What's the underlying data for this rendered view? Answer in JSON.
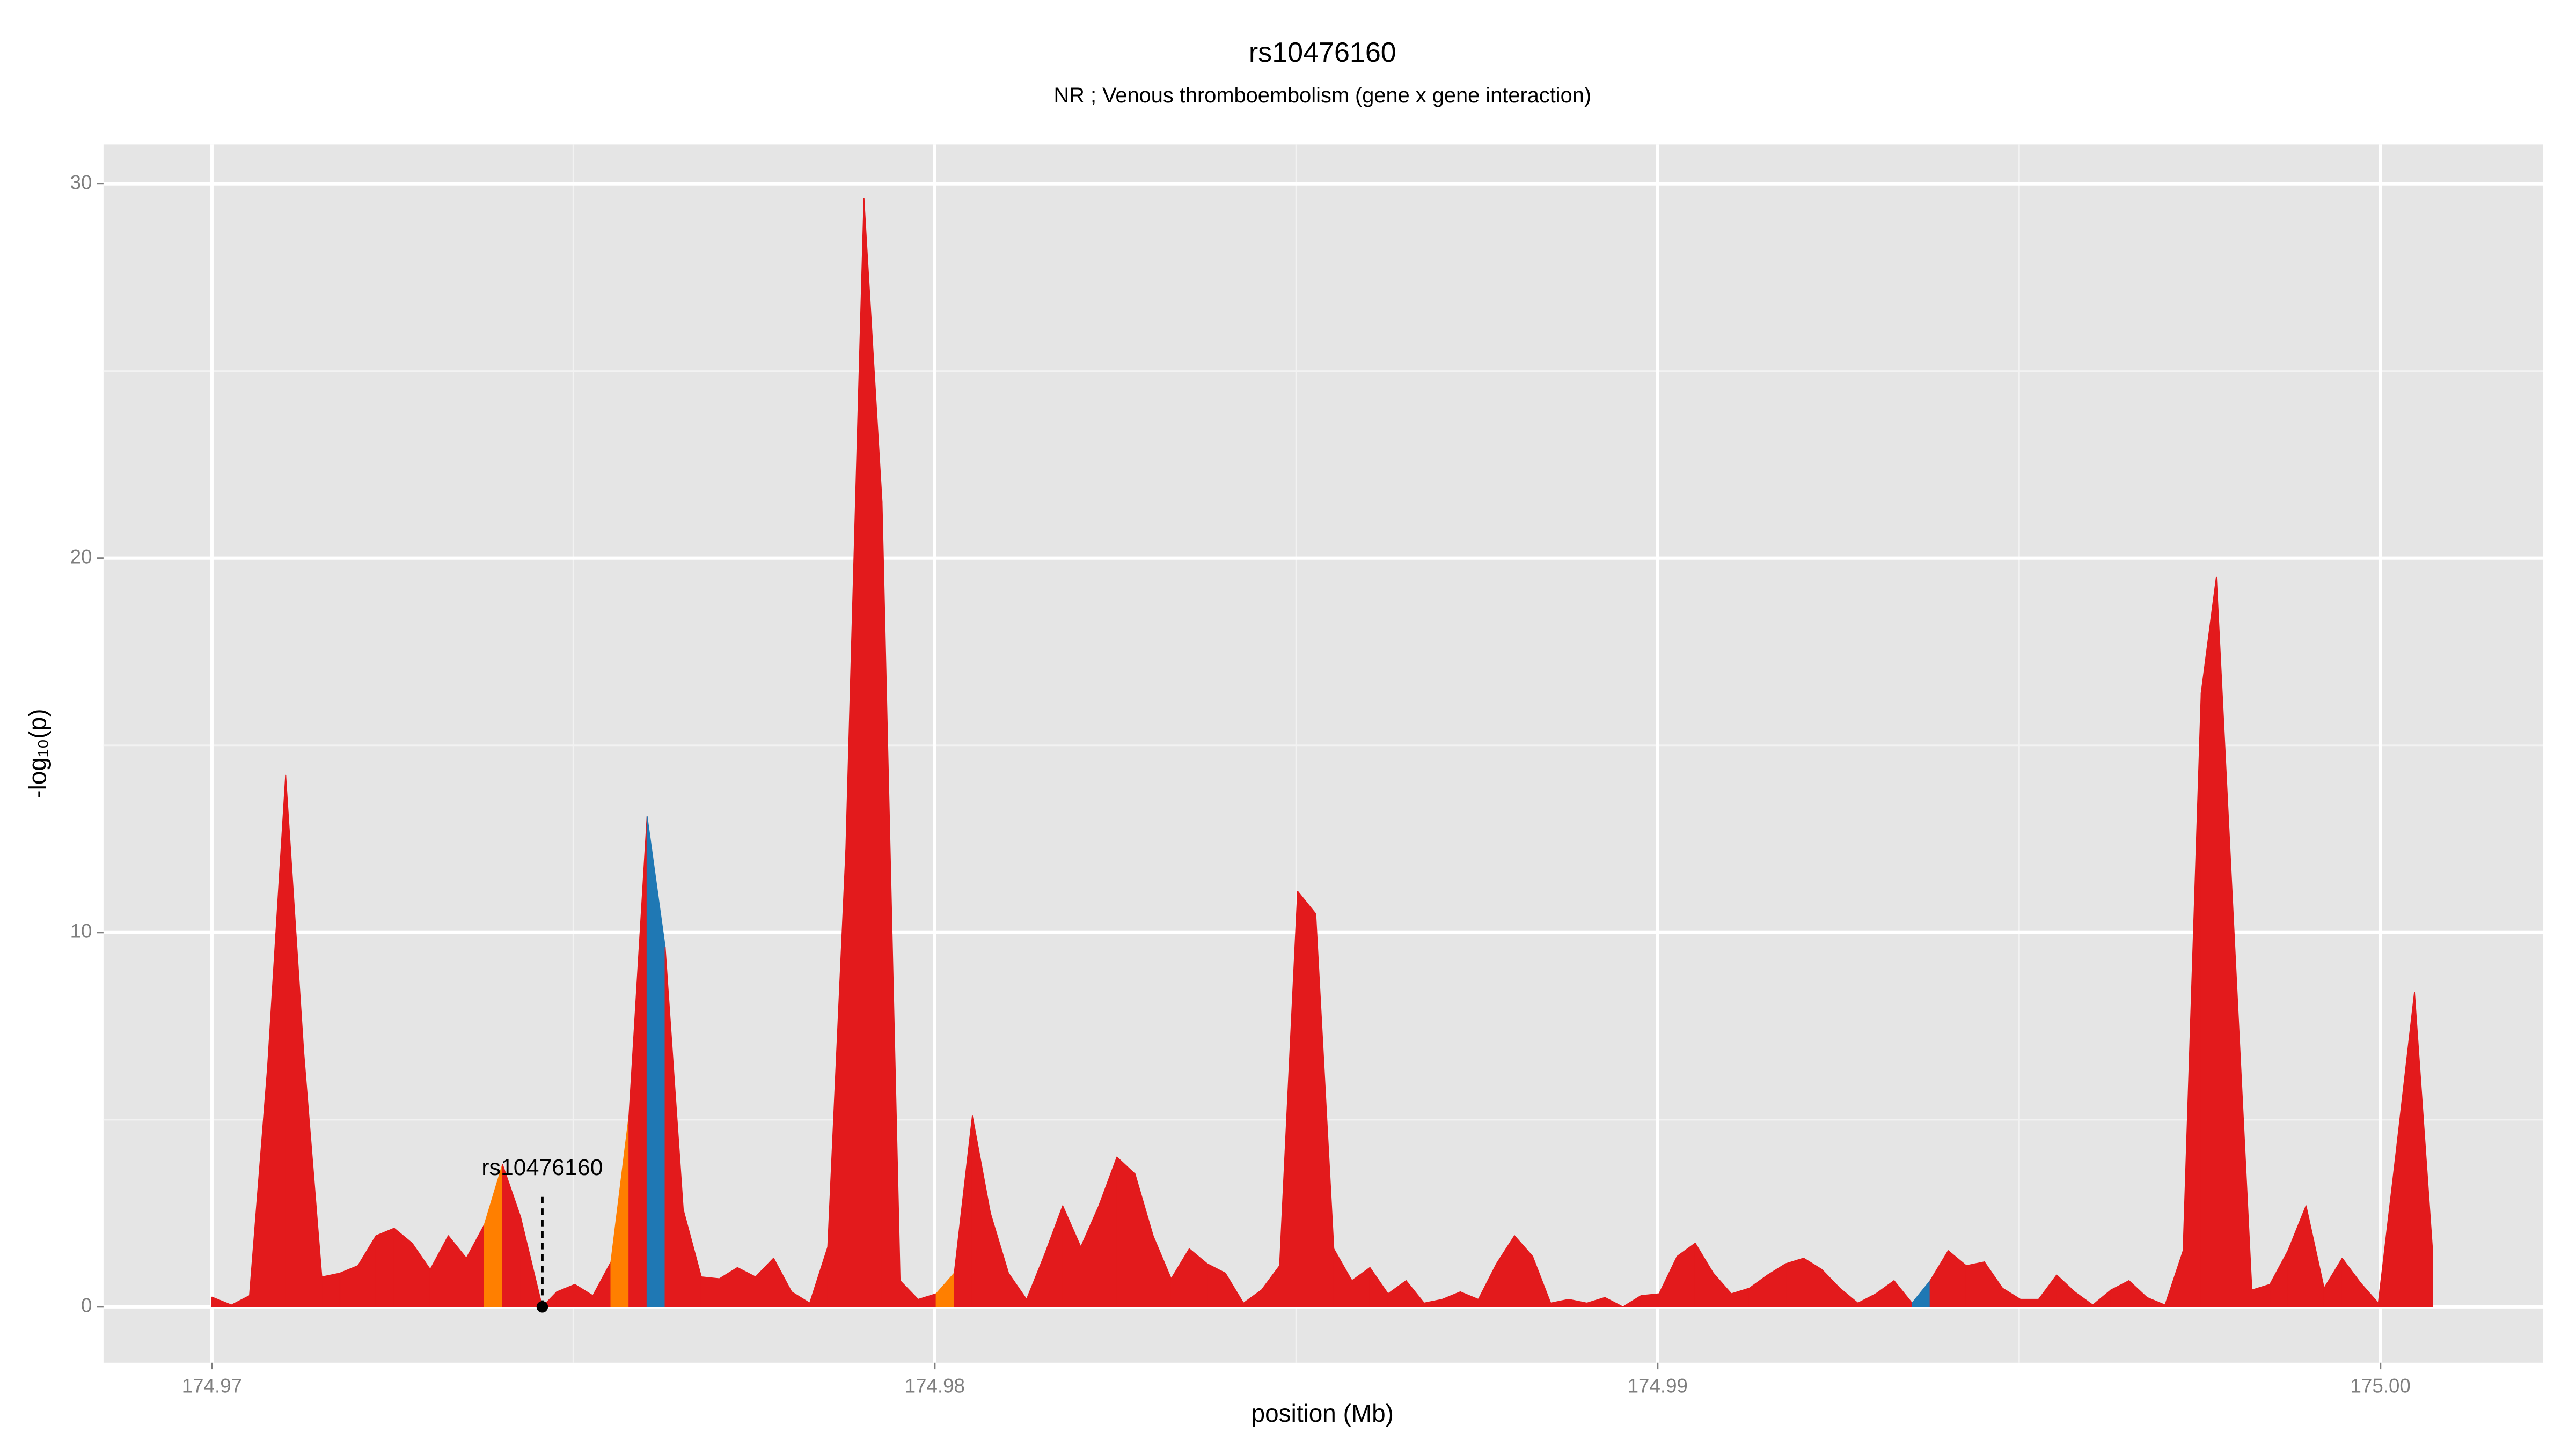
{
  "chart_data": {
    "type": "area",
    "title": "rs10476160",
    "subtitle": "NR ; Venous thromboembolism (gene x gene interaction)",
    "xlabel": "position (Mb)",
    "ylabel": "-log₁₀(p)",
    "x": [
      174.97,
      174.97027,
      174.97052,
      174.97077,
      174.97102,
      174.97127,
      174.97152,
      174.97177,
      174.97202,
      174.97227,
      174.97252,
      174.97277,
      174.97302,
      174.97327,
      174.97352,
      174.97377,
      174.97402,
      174.97427,
      174.97457,
      174.97477,
      174.97502,
      174.97527,
      174.97552,
      174.97577,
      174.97602,
      174.97627,
      174.97652,
      174.97677,
      174.97702,
      174.97727,
      174.97752,
      174.97777,
      174.97802,
      174.97827,
      174.97852,
      174.97877,
      174.97902,
      174.97927,
      174.97952,
      174.97977,
      174.98002,
      174.98027,
      174.98052,
      174.98077,
      174.98102,
      174.98127,
      174.98152,
      174.98177,
      174.98202,
      174.98227,
      174.98252,
      174.98277,
      174.98302,
      174.98327,
      174.98352,
      174.98377,
      174.98402,
      174.98427,
      174.98452,
      174.98477,
      174.98502,
      174.98527,
      174.98552,
      174.98577,
      174.98602,
      174.98627,
      174.98652,
      174.98677,
      174.98702,
      174.98727,
      174.98752,
      174.98777,
      174.98802,
      174.98827,
      174.98852,
      174.98877,
      174.98902,
      174.98927,
      174.98952,
      174.98977,
      174.99002,
      174.99027,
      174.99052,
      174.99077,
      174.99102,
      174.99127,
      174.99152,
      174.99177,
      174.99202,
      174.99227,
      174.99252,
      174.99277,
      174.99302,
      174.99327,
      174.99352,
      174.99377,
      174.99402,
      174.99427,
      174.99452,
      174.99477,
      174.99502,
      174.99527,
      174.99552,
      174.99577,
      174.99602,
      174.99627,
      174.99652,
      174.99677,
      174.99702,
      174.99727,
      174.99752,
      174.99773,
      174.99822,
      174.99847,
      174.99872,
      174.99897,
      174.99922,
      174.99947,
      174.99972,
      174.99997,
      175.00022,
      175.00047,
      175.00072
    ],
    "values": [
      0.26,
      0.05,
      0.3,
      6.4,
      14.2,
      6.8,
      0.8,
      0.9,
      1.1,
      1.9,
      2.1,
      1.7,
      1.0,
      1.9,
      1.3,
      2.2,
      3.8,
      2.4,
      0,
      0.4,
      0.6,
      0.3,
      1.2,
      5.1,
      13.1,
      9.6,
      2.6,
      0.8,
      0.75,
      1.05,
      0.8,
      1.3,
      0.4,
      0.1,
      1.6,
      12.2,
      29.6,
      21.5,
      0.7,
      0.2,
      0.35,
      0.9,
      5.1,
      2.5,
      0.9,
      0.2,
      1.4,
      2.7,
      1.6,
      2.7,
      4.0,
      3.55,
      1.9,
      0.75,
      1.55,
      1.15,
      0.9,
      0.1,
      0.45,
      1.1,
      11.1,
      10.5,
      1.55,
      0.7,
      1.05,
      0.35,
      0.7,
      0.1,
      0.2,
      0.4,
      0.2,
      1.15,
      1.9,
      1.35,
      0.1,
      0.2,
      0.1,
      0.25,
      0,
      0.3,
      0.35,
      1.35,
      1.7,
      0.9,
      0.35,
      0.5,
      0.85,
      1.15,
      1.3,
      1.0,
      0.5,
      0.1,
      0.35,
      0.7,
      0.1,
      0.7,
      1.5,
      1.1,
      1.2,
      0.5,
      0.2,
      0.2,
      0.85,
      0.4,
      0.05,
      0.45,
      0.7,
      0.25,
      0.05,
      1.5,
      16.4,
      19.5,
      0.45,
      0.6,
      1.5,
      2.7,
      0.5,
      1.3,
      0.65,
      0.1,
      4.2,
      8.4,
      1.5
    ],
    "segment_colors": [
      "#e31a1c",
      "#e31a1c",
      "#e31a1c",
      "#e31a1c",
      "#e31a1c",
      "#e31a1c",
      "#e31a1c",
      "#e31a1c",
      "#e31a1c",
      "#e31a1c",
      "#e31a1c",
      "#e31a1c",
      "#e31a1c",
      "#e31a1c",
      "#e31a1c",
      "#ff7f00",
      "#e31a1c",
      "#e31a1c",
      "#e31a1c",
      "#e31a1c",
      "#e31a1c",
      "#e31a1c",
      "#ff7f00",
      "#e31a1c",
      "#1f78b4",
      "#e31a1c",
      "#e31a1c",
      "#e31a1c",
      "#e31a1c",
      "#e31a1c",
      "#e31a1c",
      "#e31a1c",
      "#e31a1c",
      "#e31a1c",
      "#e31a1c",
      "#e31a1c",
      "#e31a1c",
      "#e31a1c",
      "#e31a1c",
      "#e31a1c",
      "#ff7f00",
      "#e31a1c",
      "#e31a1c",
      "#e31a1c",
      "#e31a1c",
      "#e31a1c",
      "#e31a1c",
      "#e31a1c",
      "#e31a1c",
      "#e31a1c",
      "#e31a1c",
      "#e31a1c",
      "#e31a1c",
      "#e31a1c",
      "#e31a1c",
      "#e31a1c",
      "#e31a1c",
      "#e31a1c",
      "#e31a1c",
      "#e31a1c",
      "#e31a1c",
      "#e31a1c",
      "#e31a1c",
      "#e31a1c",
      "#e31a1c",
      "#e31a1c",
      "#e31a1c",
      "#e31a1c",
      "#e31a1c",
      "#e31a1c",
      "#e31a1c",
      "#e31a1c",
      "#e31a1c",
      "#e31a1c",
      "#e31a1c",
      "#e31a1c",
      "#e31a1c",
      "#e31a1c",
      "#e31a1c",
      "#e31a1c",
      "#e31a1c",
      "#e31a1c",
      "#e31a1c",
      "#e31a1c",
      "#e31a1c",
      "#e31a1c",
      "#e31a1c",
      "#e31a1c",
      "#e31a1c",
      "#e31a1c",
      "#e31a1c",
      "#e31a1c",
      "#e31a1c",
      "#e31a1c",
      "#1f78b4",
      "#e31a1c",
      "#e31a1c",
      "#e31a1c",
      "#e31a1c",
      "#e31a1c",
      "#e31a1c",
      "#e31a1c",
      "#e31a1c",
      "#e31a1c",
      "#e31a1c",
      "#e31a1c",
      "#e31a1c",
      "#e31a1c",
      "#e31a1c",
      "#e31a1c",
      "#e31a1c",
      "#e31a1c",
      "#e31a1c",
      "#e31a1c",
      "#e31a1c",
      "#e31a1c",
      "#e31a1c",
      "#e31a1c",
      "#e31a1c",
      "#e31a1c",
      "#e31a1c",
      "#e31a1c"
    ],
    "annotation": {
      "text": "rs10476160",
      "x": 174.97457,
      "y": 0
    },
    "xlim": [
      174.9685,
      175.00225
    ],
    "ylim": [
      -1.49,
      31.05
    ],
    "xticks": [
      174.97,
      174.98,
      174.99,
      {
        "value": 175,
        "label": "175.00"
      }
    ],
    "yticks": [
      0,
      10,
      20,
      30
    ],
    "xminor_ticks": [
      174.975,
      174.985,
      174.995
    ],
    "yminor_ticks": [
      5,
      15,
      25
    ],
    "grid": true
  }
}
